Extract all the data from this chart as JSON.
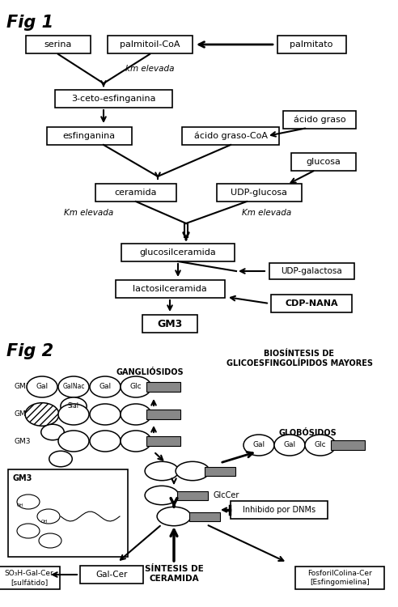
{
  "bg_color": "#ffffff",
  "fig1_title": "Fig 1",
  "fig2_title": "Fig 2",
  "fig2_subtitle": "BIOSÍNTESIS DE\nGLICOESFINGOLÍPIDOS MAYORES"
}
